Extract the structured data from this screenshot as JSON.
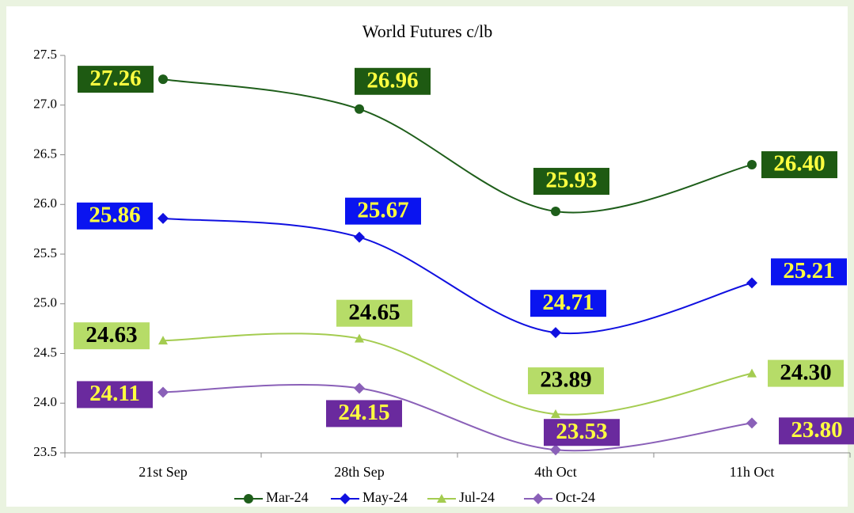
{
  "chart_data": {
    "type": "line",
    "title": "World Futures c/lb",
    "categories": [
      "21st Sep",
      "28th Sep",
      "4th Oct",
      "11h Oct"
    ],
    "ylim": [
      23.5,
      27.5
    ],
    "yticks": [
      23.5,
      {
        "value": 24,
        "label": "24.0"
      },
      24.5,
      {
        "value": 25,
        "label": "25.0"
      },
      25.5,
      {
        "value": 26,
        "label": "26.0"
      },
      26.5,
      {
        "value": 27,
        "label": "27.0"
      },
      27.5
    ],
    "legend": "bottom",
    "series": [
      {
        "name": "Mar-24",
        "color": "#1e5e1a",
        "marker": "circle",
        "values": [
          27.26,
          26.96,
          25.93,
          26.4
        ],
        "value_labels": [
          "27.26",
          "26.96",
          "25.93",
          "26.40"
        ],
        "label_color": "#1e5a12",
        "label_text_color": "#ffff40"
      },
      {
        "name": "May-24",
        "color": "#1010e0",
        "marker": "diamond",
        "values": [
          25.86,
          25.67,
          24.71,
          25.21
        ],
        "value_labels": [
          "25.86",
          "25.67",
          "24.71",
          "25.21"
        ],
        "label_color": "#0a14f0",
        "label_text_color": "#ffff40"
      },
      {
        "name": "Jul-24",
        "color": "#a4cc50",
        "marker": "triangle",
        "values": [
          24.63,
          24.65,
          23.89,
          24.3
        ],
        "value_labels": [
          "24.63",
          "24.65",
          "23.89",
          "24.30"
        ],
        "label_color": "#b6dc68",
        "label_text_color": "#000000"
      },
      {
        "name": "Oct-24",
        "color": "#8a60b8",
        "marker": "diamond",
        "values": [
          24.11,
          24.15,
          23.53,
          23.8
        ],
        "value_labels": [
          "24.11",
          "24.15",
          "23.53",
          "23.80"
        ],
        "label_color": "#6a2a9e",
        "label_text_color": "#ffff40"
      }
    ]
  }
}
